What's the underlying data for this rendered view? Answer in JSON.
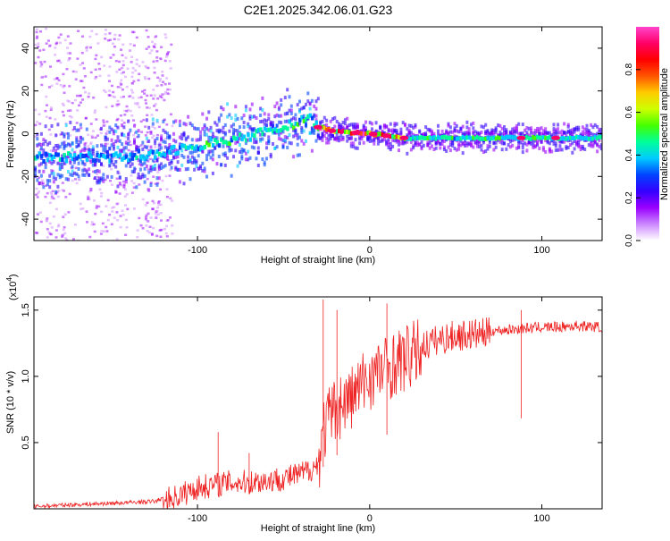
{
  "title": "C2E1.2025.342.06.01.G23",
  "chart_data": [
    {
      "type": "heatmap",
      "xlabel": "Height of straight line (km)",
      "ylabel": "Frequency (Hz)",
      "xlim": [
        -195,
        135
      ],
      "ylim": [
        -50,
        50
      ],
      "xticks": [
        -100,
        0,
        100
      ],
      "yticks": [
        -40,
        -20,
        0,
        20,
        40
      ],
      "colorbar": {
        "label": "Normalized spectral amplitude",
        "range": [
          0,
          1
        ],
        "ticks": [
          "0.0",
          "0.2",
          "0.4",
          "0.6",
          "0.8"
        ],
        "tick_values": [
          0,
          0.2,
          0.4,
          0.6,
          0.8
        ],
        "colors": [
          "#ffffff",
          "#cc88ff",
          "#9900ff",
          "#3300ff",
          "#0044ff",
          "#00ccff",
          "#00ff99",
          "#44ff00",
          "#ccff00",
          "#ffcc00",
          "#ff5500",
          "#ff0000",
          "#ff0066",
          "#ff44cc"
        ]
      },
      "ridge": [
        {
          "x": -195,
          "f": -11
        },
        {
          "x": -160,
          "f": -11
        },
        {
          "x": -130,
          "f": -10
        },
        {
          "x": -110,
          "f": -7
        },
        {
          "x": -90,
          "f": -4
        },
        {
          "x": -70,
          "f": -1
        },
        {
          "x": -50,
          "f": 3
        },
        {
          "x": -35,
          "f": 7
        },
        {
          "x": -30,
          "f": 3
        },
        {
          "x": -20,
          "f": 1
        },
        {
          "x": 0,
          "f": 0
        },
        {
          "x": 20,
          "f": -2
        },
        {
          "x": 60,
          "f": -2
        },
        {
          "x": 100,
          "f": -2
        },
        {
          "x": 135,
          "f": -2
        }
      ]
    },
    {
      "type": "line",
      "xlabel": "Height of straight line (km)",
      "ylabel": "SNR (10 * v/v)",
      "y_multiplier": "(x10",
      "y_multiplier_exp": "4",
      "y_multiplier_close": ")",
      "xlim": [
        -195,
        135
      ],
      "ylim": [
        0,
        1.6
      ],
      "xticks": [
        -100,
        0,
        100
      ],
      "yticks": [
        "0.5",
        "1.0",
        "1.5"
      ],
      "ytick_values": [
        0.5,
        1.0,
        1.5
      ],
      "color": "#ee2222",
      "series": [
        {
          "name": "SNR",
          "x": [
            -195,
            -180,
            -160,
            -140,
            -125,
            -110,
            -100,
            -90,
            -80,
            -70,
            -60,
            -50,
            -40,
            -30,
            -28,
            -25,
            -20,
            -15,
            -10,
            -5,
            0,
            10,
            20,
            30,
            40,
            50,
            60,
            70,
            80,
            90,
            100,
            110,
            120,
            135
          ],
          "y": [
            0.02,
            0.03,
            0.04,
            0.05,
            0.06,
            0.12,
            0.18,
            0.2,
            0.22,
            0.22,
            0.23,
            0.25,
            0.28,
            0.35,
            0.6,
            0.7,
            0.8,
            0.85,
            0.9,
            0.98,
            1.05,
            1.12,
            1.18,
            1.25,
            1.3,
            1.33,
            1.34,
            1.35,
            1.36,
            1.37,
            1.38,
            1.38,
            1.39,
            1.38
          ]
        }
      ],
      "spikes": [
        {
          "x": -88,
          "y": 0.58
        },
        {
          "x": -70,
          "y": 0.42
        },
        {
          "x": -27,
          "y": 1.58
        },
        {
          "x": -19,
          "y": 1.5
        },
        {
          "x": 10,
          "y": 1.55
        },
        {
          "x": 88,
          "y": 1.5
        }
      ]
    }
  ]
}
